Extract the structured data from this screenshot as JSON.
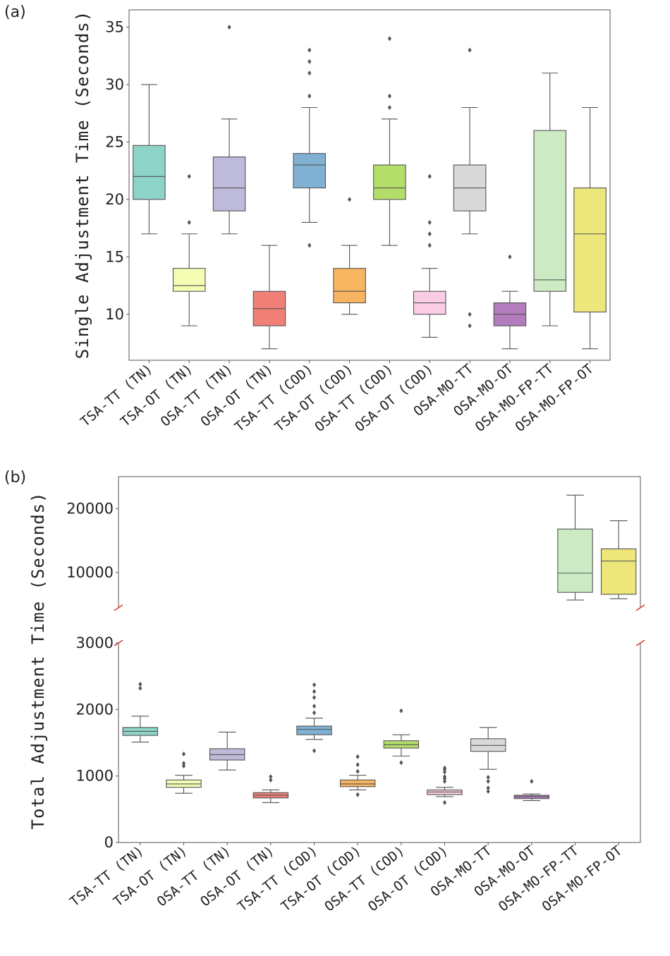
{
  "chart_data": [
    {
      "panel_label": "(a)",
      "type": "box",
      "ylabel": "Single Adjustment Time (Seconds)",
      "ylim": [
        6,
        36.5
      ],
      "yticks": [
        10,
        15,
        20,
        25,
        30,
        35
      ],
      "grid": false,
      "categories": [
        "TSA-TT (TN)",
        "TSA-OT (TN)",
        "OSA-TT (TN)",
        "OSA-OT (TN)",
        "TSA-TT (COD)",
        "TSA-OT (COD)",
        "OSA-TT (COD)",
        "OSA-OT (COD)",
        "OSA-MO-TT",
        "OSA-MO-OT",
        "OSA-MO-FP-TT",
        "OSA-MO-FP-OT"
      ],
      "colors": [
        "#8dd3c7",
        "#f5fcb4",
        "#bebada",
        "#f08077",
        "#80b1d3",
        "#f7b561",
        "#b3de69",
        "#fbcde4",
        "#d9d9d9",
        "#b27cbd",
        "#ccebc5",
        "#ede67a"
      ],
      "boxes": [
        {
          "whislo": 17,
          "q1": 20,
          "med": 22,
          "q3": 24.7,
          "whishi": 30,
          "fliers": []
        },
        {
          "whislo": 9,
          "q1": 12,
          "med": 12.5,
          "q3": 14,
          "whishi": 17,
          "fliers": [
            18,
            22
          ]
        },
        {
          "whislo": 17,
          "q1": 19,
          "med": 21,
          "q3": 23.7,
          "whishi": 27,
          "fliers": [
            35
          ]
        },
        {
          "whislo": 7,
          "q1": 9,
          "med": 10.5,
          "q3": 12,
          "whishi": 16,
          "fliers": []
        },
        {
          "whislo": 18,
          "q1": 21,
          "med": 23,
          "q3": 24,
          "whishi": 28,
          "fliers": [
            16,
            29,
            31,
            32,
            33
          ]
        },
        {
          "whislo": 10,
          "q1": 11,
          "med": 12,
          "q3": 14,
          "whishi": 16,
          "fliers": [
            20
          ]
        },
        {
          "whislo": 16,
          "q1": 20,
          "med": 21,
          "q3": 23,
          "whishi": 27,
          "fliers": [
            28,
            29,
            34
          ]
        },
        {
          "whislo": 8,
          "q1": 10,
          "med": 11,
          "q3": 12,
          "whishi": 14,
          "fliers": [
            16,
            17,
            18,
            22
          ]
        },
        {
          "whislo": 17,
          "q1": 19,
          "med": 21,
          "q3": 23,
          "whishi": 28,
          "fliers": [
            9,
            10,
            33
          ]
        },
        {
          "whislo": 7,
          "q1": 9,
          "med": 10,
          "q3": 11,
          "whishi": 12,
          "fliers": [
            15
          ]
        },
        {
          "whislo": 9,
          "q1": 12,
          "med": 13,
          "q3": 26,
          "whishi": 31,
          "fliers": []
        },
        {
          "whislo": 7,
          "q1": 10.2,
          "med": 17,
          "q3": 21,
          "whishi": 28,
          "fliers": []
        }
      ]
    },
    {
      "panel_label": "(b)",
      "type": "box",
      "ylabel": "Total Adjustment Time (Seconds)",
      "broken_axis": true,
      "ylim_lower": [
        0,
        3000
      ],
      "ylim_upper": [
        4500,
        25000
      ],
      "yticks_lower": [
        0,
        1000,
        2000,
        3000
      ],
      "yticks_upper": [
        10000,
        20000
      ],
      "grid": false,
      "categories": [
        "TSA-TT (TN)",
        "TSA-OT (TN)",
        "OSA-TT (TN)",
        "OSA-OT (TN)",
        "TSA-TT (COD)",
        "TSA-OT (COD)",
        "OSA-TT (COD)",
        "OSA-OT (COD)",
        "OSA-MO-TT",
        "OSA-MO-OT",
        "OSA-MO-FP-TT",
        "OSA-MO-FP-OT"
      ],
      "colors": [
        "#8dd3c7",
        "#f5fcb4",
        "#bebada",
        "#f08077",
        "#80b1d3",
        "#f7b561",
        "#b3de69",
        "#fbcde4",
        "#d9d9d9",
        "#b27cbd",
        "#ccebc5",
        "#ede67a"
      ],
      "boxes": [
        {
          "whislo": 1510,
          "q1": 1610,
          "med": 1670,
          "q3": 1730,
          "whishi": 1900,
          "fliers": [
            2320,
            2380
          ]
        },
        {
          "whislo": 740,
          "q1": 830,
          "med": 880,
          "q3": 940,
          "whishi": 1010,
          "fliers": [
            1150,
            1190,
            1330
          ]
        },
        {
          "whislo": 1090,
          "q1": 1240,
          "med": 1320,
          "q3": 1410,
          "whishi": 1660,
          "fliers": []
        },
        {
          "whislo": 600,
          "q1": 670,
          "med": 710,
          "q3": 750,
          "whishi": 790,
          "fliers": [
            940,
            990
          ]
        },
        {
          "whislo": 1550,
          "q1": 1620,
          "med": 1700,
          "q3": 1750,
          "whishi": 1870,
          "fliers": [
            1380,
            1950,
            2050,
            2180,
            2270,
            2370
          ]
        },
        {
          "whislo": 790,
          "q1": 840,
          "med": 880,
          "q3": 940,
          "whishi": 1010,
          "fliers": [
            720,
            1070,
            1170,
            1290
          ]
        },
        {
          "whislo": 1300,
          "q1": 1420,
          "med": 1470,
          "q3": 1530,
          "whishi": 1620,
          "fliers": [
            1200,
            1980
          ]
        },
        {
          "whislo": 690,
          "q1": 720,
          "med": 760,
          "q3": 790,
          "whishi": 830,
          "fliers": [
            600,
            920,
            960,
            990,
            1060,
            1100,
            1120
          ]
        },
        {
          "whislo": 1100,
          "q1": 1370,
          "med": 1460,
          "q3": 1560,
          "whishi": 1730,
          "fliers": [
            770,
            820,
            920,
            980
          ]
        },
        {
          "whislo": 630,
          "q1": 660,
          "med": 690,
          "q3": 710,
          "whishi": 730,
          "fliers": [
            920
          ]
        },
        {
          "whislo": 5700,
          "q1": 6900,
          "med": 9900,
          "q3": 16800,
          "whishi": 22100,
          "fliers": []
        },
        {
          "whislo": 5900,
          "q1": 6600,
          "med": 11800,
          "q3": 13700,
          "whishi": 18100,
          "fliers": []
        }
      ]
    }
  ]
}
